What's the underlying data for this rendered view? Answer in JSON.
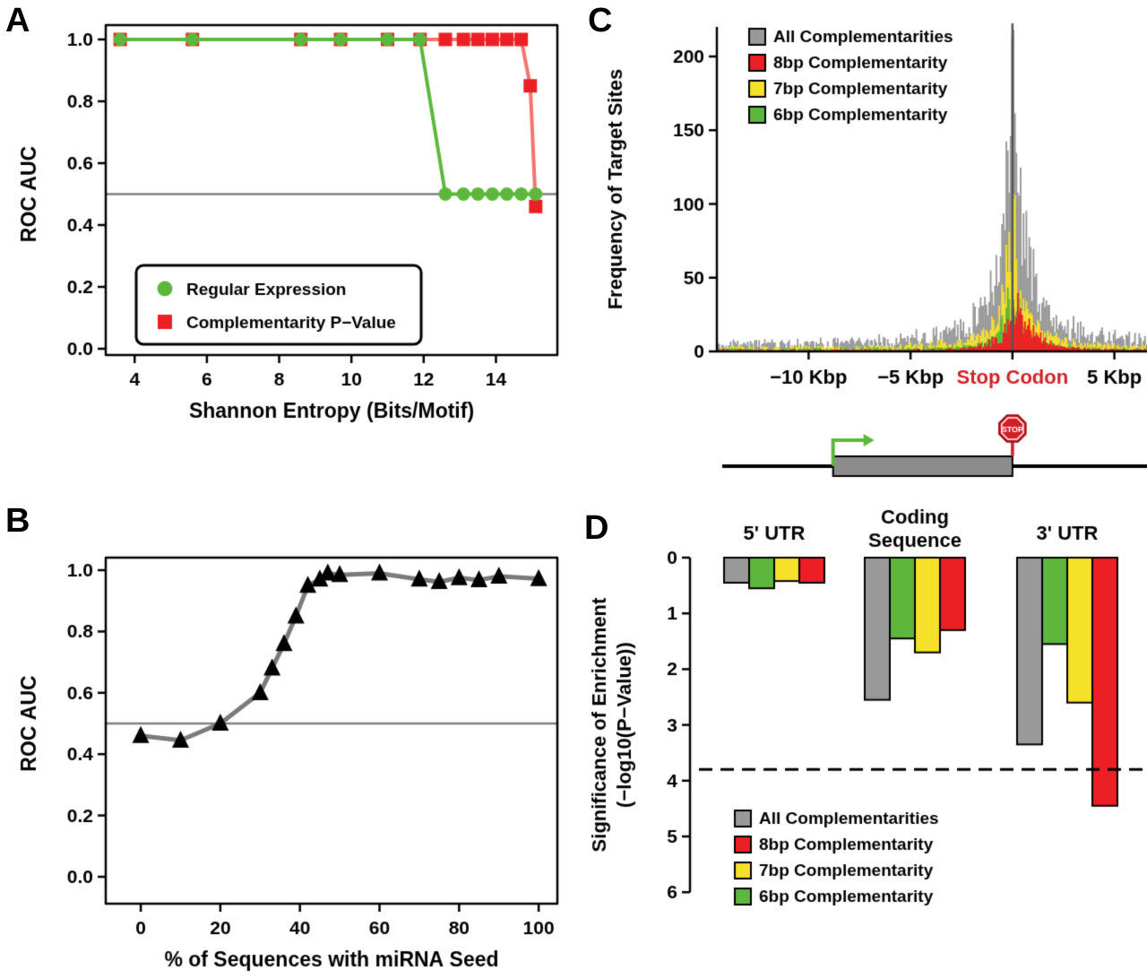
{
  "labels": {
    "panel_a": "A",
    "panel_b": "B",
    "panel_c": "C",
    "panel_d": "D"
  },
  "colors": {
    "green": "#5cb73c",
    "red": "#ec2024",
    "red_line": "#f4736d",
    "yellow": "#f6e12a",
    "gray": "#999999",
    "ref_line": "#808080",
    "b_line": "#7a7a7a",
    "stop_red": "#d41f26",
    "center_line": "#555555"
  },
  "chart_data": [
    {
      "panel": "A",
      "type": "line",
      "xlabel": "Shannon Entropy (Bits/Motif)",
      "ylabel": "ROC AUC",
      "xlim": [
        3.2,
        15.7
      ],
      "ylim": [
        0,
        1
      ],
      "xticks": [
        4,
        6,
        8,
        10,
        12,
        14
      ],
      "yticks": [
        0,
        0.2,
        0.4,
        0.6,
        0.8,
        1
      ],
      "reference_line_y": 0.5,
      "series": [
        {
          "name": "Complementarity P-Value",
          "marker": "square",
          "color": "#ec2024",
          "line_color": "#f4736d",
          "x": [
            3.6,
            5.6,
            8.6,
            9.7,
            11.0,
            11.9,
            12.6,
            13.1,
            13.5,
            13.9,
            14.3,
            14.7,
            14.95,
            15.1
          ],
          "y": [
            1,
            1,
            1,
            1,
            1,
            1,
            1,
            1,
            1,
            1,
            1,
            1,
            0.85,
            0.46
          ]
        },
        {
          "name": "Regular Expression",
          "marker": "circle",
          "color": "#5cb73c",
          "line_color": "#5cb73c",
          "x": [
            3.6,
            5.6,
            8.6,
            9.7,
            11.0,
            11.9,
            12.6,
            13.1,
            13.5,
            13.9,
            14.3,
            14.7,
            15.1
          ],
          "y": [
            1,
            1,
            1,
            1,
            1,
            1,
            0.5,
            0.5,
            0.5,
            0.5,
            0.5,
            0.5,
            0.5
          ]
        }
      ],
      "legend": {
        "items": [
          {
            "label": "Regular Expression",
            "marker": "circle",
            "color": "#5cb73c"
          },
          {
            "label": "Complementarity P−Value",
            "marker": "square",
            "color": "#ec2024"
          }
        ]
      }
    },
    {
      "panel": "B",
      "type": "line",
      "xlabel": "% of Sequences with miRNA Seed",
      "ylabel": "ROC AUC",
      "xlim": [
        -8.8,
        104.7
      ],
      "ylim": [
        0,
        1
      ],
      "xticks": [
        0,
        20,
        40,
        60,
        80,
        100
      ],
      "yticks": [
        0,
        0.2,
        0.4,
        0.6,
        0.8,
        1
      ],
      "reference_line_y": 0.5,
      "series": [
        {
          "name": "ROC AUC",
          "marker": "triangle",
          "color": "#000000",
          "line_color": "#7a7a7a",
          "line_width": 5,
          "x": [
            0,
            10,
            20,
            30,
            33,
            36,
            39,
            42,
            45,
            47,
            50,
            60,
            70,
            75,
            80,
            85,
            90,
            100
          ],
          "y": [
            0.46,
            0.445,
            0.5,
            0.6,
            0.68,
            0.76,
            0.85,
            0.95,
            0.97,
            0.99,
            0.985,
            0.99,
            0.97,
            0.962,
            0.975,
            0.968,
            0.98,
            0.972
          ]
        }
      ]
    },
    {
      "panel": "C",
      "type": "histogram",
      "ylabel": "Frequency of Target Sites",
      "xlim": [
        -14.5,
        6.6
      ],
      "ylim": [
        0,
        220
      ],
      "yticks": [
        0,
        50,
        100,
        150,
        200
      ],
      "xticks": [
        {
          "value": -10,
          "label": "−10 Kbp",
          "color": "#000000"
        },
        {
          "value": -5,
          "label": "−5 Kbp",
          "color": "#000000"
        },
        {
          "value": 0,
          "label": "Stop Codon",
          "color": "#d41f26"
        },
        {
          "value": 5,
          "label": "5 Kbp",
          "color": "#000000"
        }
      ],
      "center_line_x": 0,
      "bin_width": 0.07,
      "series": [
        {
          "name": "All Complementarities",
          "color": "#999999",
          "seed": 11,
          "base": 5,
          "peak": 215,
          "peak_center": 0,
          "sharp_scale": 0.55,
          "broad_amp": 40,
          "broad_scale": 2.8
        },
        {
          "name": "7bp Complementarity",
          "color": "#f6e12a",
          "seed": 23,
          "base": 2.5,
          "peak": 95,
          "peak_center": 0,
          "sharp_scale": 0.5,
          "broad_amp": 18,
          "broad_scale": 2.2
        },
        {
          "name": "6bp Complementarity",
          "color": "#5cb73c",
          "seed": 37,
          "base": 1.5,
          "peak": 52,
          "peak_center": 0,
          "sharp_scale": 0.45,
          "broad_amp": 9,
          "broad_scale": 1.8
        },
        {
          "name": "8bp Complementarity",
          "color": "#ec2024",
          "seed": 53,
          "base": 1,
          "peak": 36,
          "peak_center": 0.35,
          "sharp_scale": 0.75,
          "broad_amp": 6,
          "broad_scale": 1.4
        }
      ],
      "legend": {
        "items": [
          {
            "label": "All Complementarities",
            "color": "#999999"
          },
          {
            "label": "8bp Complementarity",
            "color": "#ec2024"
          },
          {
            "label": "7bp Complementarity",
            "color": "#f6e12a"
          },
          {
            "label": "6bp Complementarity",
            "color": "#5cb73c"
          }
        ]
      },
      "gene_diagram": {
        "gene_start_kbp": -8.8,
        "stop_kbp": 0,
        "stop_sign_label": "STOP"
      }
    },
    {
      "panel": "D",
      "type": "grouped_bar_inverted",
      "ylabel_lines": [
        "Significance of Enrichment",
        "(−log10(P−Value))"
      ],
      "ylim": [
        0,
        6
      ],
      "yticks": [
        0,
        1,
        2,
        3,
        4,
        5,
        6
      ],
      "threshold_line": 3.8,
      "series_order": [
        {
          "name": "All Complementarities",
          "color": "#999999"
        },
        {
          "name": "6bp Complementarity",
          "color": "#5cb73c"
        },
        {
          "name": "7bp Complementarity",
          "color": "#f6e12a"
        },
        {
          "name": "8bp Complementarity",
          "color": "#ec2024"
        }
      ],
      "groups": [
        {
          "label": "5' UTR",
          "label_lines": [
            "5' UTR"
          ],
          "values": [
            0.45,
            0.55,
            0.42,
            0.45
          ]
        },
        {
          "label": "Coding Sequence",
          "label_lines": [
            "Coding",
            "Sequence"
          ],
          "values": [
            2.55,
            1.45,
            1.7,
            1.3
          ]
        },
        {
          "label": "3' UTR",
          "label_lines": [
            "3' UTR"
          ],
          "values": [
            3.35,
            1.55,
            2.6,
            4.45
          ]
        }
      ],
      "legend": {
        "items": [
          {
            "label": "All Complementarities",
            "color": "#999999"
          },
          {
            "label": "8bp Complementarity",
            "color": "#ec2024"
          },
          {
            "label": "7bp Complementarity",
            "color": "#f6e12a"
          },
          {
            "label": "6bp Complementarity",
            "color": "#5cb73c"
          }
        ]
      }
    }
  ]
}
